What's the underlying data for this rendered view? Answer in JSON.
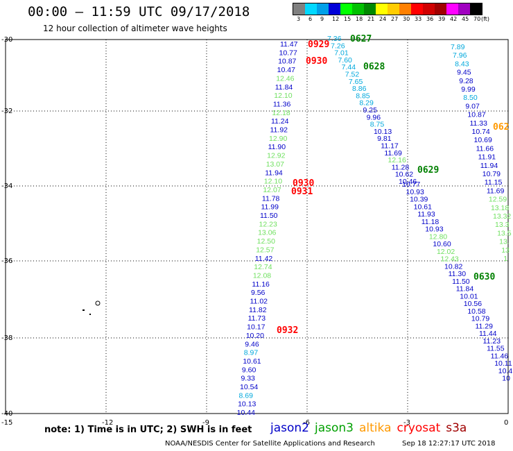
{
  "header": {
    "title": "00:00 – 11:59 UTC 09/17/2018",
    "subtitle": "12 hour collection of altimeter wave heights"
  },
  "legend": {
    "swatches": [
      {
        "label": "3",
        "color": "#808080"
      },
      {
        "label": "6",
        "color": "#00d8ff"
      },
      {
        "label": "9",
        "color": "#00a0e8"
      },
      {
        "label": "12",
        "color": "#0000d8"
      },
      {
        "label": "15",
        "color": "#00ff00"
      },
      {
        "label": "18",
        "color": "#00c000"
      },
      {
        "label": "21",
        "color": "#008800"
      },
      {
        "label": "24",
        "color": "#ffff00"
      },
      {
        "label": "27",
        "color": "#ffcc00"
      },
      {
        "label": "30",
        "color": "#ff8000"
      },
      {
        "label": "33",
        "color": "#ff0000"
      },
      {
        "label": "36",
        "color": "#d00000"
      },
      {
        "label": "39",
        "color": "#a00000"
      },
      {
        "label": "42",
        "color": "#ff00ff"
      },
      {
        "label": "45",
        "color": "#a000c0"
      },
      {
        "label": "70",
        "color": "#000000"
      }
    ],
    "unit": "(ft)"
  },
  "axes": {
    "lat_labels": [
      "-30",
      "-32",
      "-34",
      "-36",
      "-38",
      "-40"
    ],
    "lon_labels": [
      "-15",
      "-12",
      "-9",
      "-6",
      "-3",
      "0"
    ]
  },
  "palette": {
    "dark": "#0000c8",
    "light": "#00a8dc",
    "green": "#70e060",
    "red": "#ff0000",
    "darkgreen": "#008000",
    "orange": "#ff9900"
  },
  "tracks": {
    "track_left": [
      {
        "v": "11.47",
        "c": "dark"
      },
      {
        "v": "10.77",
        "c": "dark"
      },
      {
        "v": "10.87",
        "c": "dark"
      },
      {
        "v": "10.47",
        "c": "dark"
      },
      {
        "v": "12.46",
        "c": "green"
      },
      {
        "v": "11.84",
        "c": "dark"
      },
      {
        "v": "12.10",
        "c": "green"
      },
      {
        "v": "11.36",
        "c": "dark"
      },
      {
        "v": "12.18",
        "c": "green"
      },
      {
        "v": "11.24",
        "c": "dark"
      },
      {
        "v": "11.92",
        "c": "dark"
      },
      {
        "v": "12.90",
        "c": "green"
      },
      {
        "v": "11.90",
        "c": "dark"
      },
      {
        "v": "12.92",
        "c": "green"
      },
      {
        "v": "13.07",
        "c": "green"
      },
      {
        "v": "11.94",
        "c": "dark"
      },
      {
        "v": "12.10",
        "c": "green"
      },
      {
        "v": "12.07",
        "c": "green"
      },
      {
        "v": "11.78",
        "c": "dark"
      },
      {
        "v": "11.99",
        "c": "dark"
      },
      {
        "v": "11.50",
        "c": "dark"
      },
      {
        "v": "12.23",
        "c": "green"
      },
      {
        "v": "13.06",
        "c": "green"
      },
      {
        "v": "12.50",
        "c": "green"
      },
      {
        "v": "12.57",
        "c": "green"
      },
      {
        "v": "11.42",
        "c": "dark"
      },
      {
        "v": "12.74",
        "c": "green"
      },
      {
        "v": "12.08",
        "c": "green"
      },
      {
        "v": "11.16",
        "c": "dark"
      },
      {
        "v": "9.56",
        "c": "dark"
      },
      {
        "v": "11.02",
        "c": "dark"
      },
      {
        "v": "11.82",
        "c": "dark"
      },
      {
        "v": "11.73",
        "c": "dark"
      },
      {
        "v": "10.17",
        "c": "dark"
      },
      {
        "v": "10.20",
        "c": "dark"
      },
      {
        "v": "9.46",
        "c": "dark"
      },
      {
        "v": "8.97",
        "c": "light"
      },
      {
        "v": "10.61",
        "c": "dark"
      },
      {
        "v": "9.60",
        "c": "dark"
      },
      {
        "v": "9.33",
        "c": "dark"
      },
      {
        "v": "10.54",
        "c": "dark"
      },
      {
        "v": "8.69",
        "c": "light"
      },
      {
        "v": "10.13",
        "c": "dark"
      },
      {
        "v": "10.44",
        "c": "dark"
      }
    ],
    "track_mid_upper": [
      {
        "v": "7.36",
        "c": "light"
      },
      {
        "v": "7.26",
        "c": "light"
      },
      {
        "v": "7.01",
        "c": "light"
      },
      {
        "v": "7.60",
        "c": "light"
      },
      {
        "v": "7.44",
        "c": "light"
      },
      {
        "v": "7.52",
        "c": "light"
      },
      {
        "v": "7.65",
        "c": "light"
      },
      {
        "v": "8.86",
        "c": "light"
      },
      {
        "v": "8.85",
        "c": "light"
      },
      {
        "v": "8.29",
        "c": "light"
      },
      {
        "v": "9.25",
        "c": "dark"
      },
      {
        "v": "9.96",
        "c": "dark"
      },
      {
        "v": "8.75",
        "c": "light"
      },
      {
        "v": "10.13",
        "c": "dark"
      },
      {
        "v": "9.81",
        "c": "dark"
      },
      {
        "v": "11.17",
        "c": "dark"
      },
      {
        "v": "11.69",
        "c": "dark"
      },
      {
        "v": "12.16",
        "c": "green"
      },
      {
        "v": "11.28",
        "c": "dark"
      },
      {
        "v": "10.62",
        "c": "dark"
      },
      {
        "v": "10.46",
        "c": "dark"
      }
    ],
    "track_mid_lower": [
      {
        "v": "10.77",
        "c": "dark"
      },
      {
        "v": "10.93",
        "c": "dark"
      },
      {
        "v": "10.39",
        "c": "dark"
      },
      {
        "v": "10.61",
        "c": "dark"
      },
      {
        "v": "11.93",
        "c": "dark"
      },
      {
        "v": "11.18",
        "c": "dark"
      },
      {
        "v": "10.93",
        "c": "dark"
      },
      {
        "v": "12.80",
        "c": "green"
      },
      {
        "v": "10.60",
        "c": "dark"
      },
      {
        "v": "12.02",
        "c": "green"
      },
      {
        "v": "12.43",
        "c": "green"
      },
      {
        "v": "10.82",
        "c": "dark"
      },
      {
        "v": "11.30",
        "c": "dark"
      },
      {
        "v": "11.50",
        "c": "dark"
      },
      {
        "v": "11.84",
        "c": "dark"
      },
      {
        "v": "10.01",
        "c": "dark"
      },
      {
        "v": "10.56",
        "c": "dark"
      },
      {
        "v": "10.58",
        "c": "dark"
      },
      {
        "v": "10.79",
        "c": "dark"
      },
      {
        "v": "11.29",
        "c": "dark"
      },
      {
        "v": "11.44",
        "c": "dark"
      },
      {
        "v": "11.23",
        "c": "dark"
      },
      {
        "v": "11.55",
        "c": "dark"
      },
      {
        "v": "11.46",
        "c": "dark"
      },
      {
        "v": "10.11",
        "c": "dark"
      },
      {
        "v": "10.4",
        "c": "dark"
      },
      {
        "v": "10",
        "c": "dark"
      }
    ],
    "track_right": [
      {
        "v": "7.89",
        "c": "light"
      },
      {
        "v": "7.96",
        "c": "light"
      },
      {
        "v": "8.43",
        "c": "light"
      },
      {
        "v": "9.45",
        "c": "dark"
      },
      {
        "v": "9.28",
        "c": "dark"
      },
      {
        "v": "9.99",
        "c": "dark"
      },
      {
        "v": "8.50",
        "c": "light"
      },
      {
        "v": "9.07",
        "c": "dark"
      },
      {
        "v": "10.87",
        "c": "dark"
      },
      {
        "v": "11.33",
        "c": "dark"
      },
      {
        "v": "10.74",
        "c": "dark"
      },
      {
        "v": "10.69",
        "c": "dark"
      },
      {
        "v": "11.66",
        "c": "dark"
      },
      {
        "v": "11.91",
        "c": "dark"
      },
      {
        "v": "11.94",
        "c": "dark"
      },
      {
        "v": "10.79",
        "c": "dark"
      },
      {
        "v": "11.15",
        "c": "dark"
      },
      {
        "v": "11.69",
        "c": "dark"
      },
      {
        "v": "12.59",
        "c": "green"
      },
      {
        "v": "13.18",
        "c": "green"
      },
      {
        "v": "13.32",
        "c": "green"
      },
      {
        "v": "13.3",
        "c": "green"
      },
      {
        "v": "13.5",
        "c": "green"
      },
      {
        "v": "13.",
        "c": "green"
      },
      {
        "v": "13",
        "c": "green"
      },
      {
        "v": "1",
        "c": "green"
      }
    ]
  },
  "time_labels": [
    {
      "t": "0929",
      "c": "red"
    },
    {
      "t": "0930",
      "c": "red"
    },
    {
      "t": "0627",
      "c": "darkgreen"
    },
    {
      "t": "0628",
      "c": "darkgreen"
    },
    {
      "t": "0629",
      "c": "darkgreen"
    },
    {
      "t": "0930",
      "c": "red"
    },
    {
      "t": "0931",
      "c": "red"
    },
    {
      "t": "0630",
      "c": "darkgreen"
    },
    {
      "t": "0932",
      "c": "red"
    },
    {
      "t": "062",
      "c": "orange"
    }
  ],
  "footer": {
    "note": "note: 1) Time is in UTC; 2) SWH is in feet",
    "satellites": [
      {
        "name": "jason2",
        "color": "#0000c8"
      },
      {
        "name": "jason3",
        "color": "#00a000"
      },
      {
        "name": "altika",
        "color": "#ff9900"
      },
      {
        "name": "cryosat",
        "color": "#ff0000"
      },
      {
        "name": "s3a",
        "color": "#a00000"
      }
    ],
    "credit": "NOAA/NESDIS Center for Satellite Applications and Research",
    "timestamp": "Sep 18 12:27:17 UTC 2018"
  }
}
